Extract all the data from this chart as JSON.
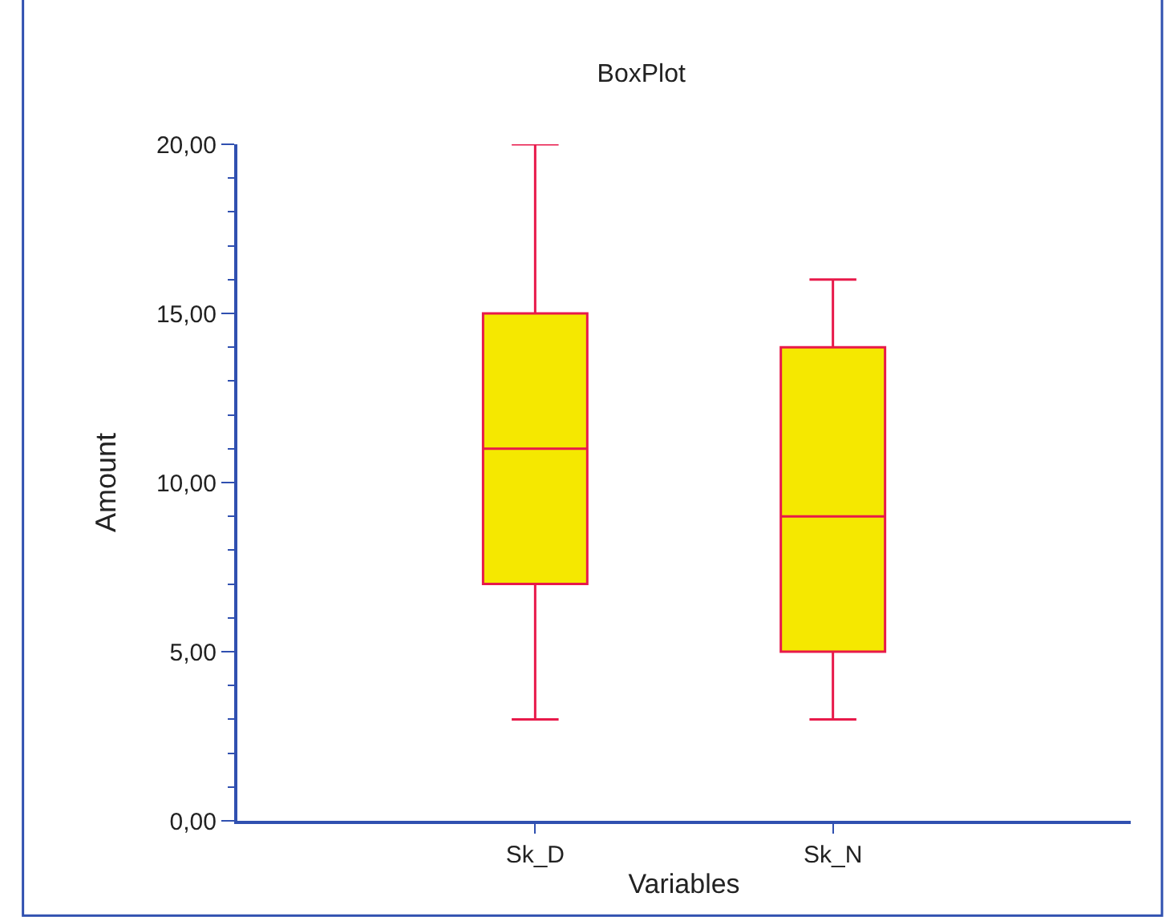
{
  "chart_data": {
    "type": "box",
    "title": "BoxPlot",
    "xlabel": "Variables",
    "ylabel": "Amount",
    "categories": [
      "Sk_D",
      "Sk_N"
    ],
    "boxes": [
      {
        "low": 3,
        "q1": 7,
        "median": 11,
        "q3": 15,
        "high": 20
      },
      {
        "low": 3,
        "q1": 5,
        "median": 9,
        "q3": 14,
        "high": 16
      }
    ],
    "color": "#f5e800",
    "ylim": [
      0,
      20
    ],
    "yticks": [
      {
        "value": 0,
        "label": "0,00"
      },
      {
        "value": 1,
        "label": null
      },
      {
        "value": 2,
        "label": null
      },
      {
        "value": 3,
        "label": null
      },
      {
        "value": 4,
        "label": null
      },
      {
        "value": 5,
        "label": "5,00"
      },
      {
        "value": 6,
        "label": null
      },
      {
        "value": 7,
        "label": null
      },
      {
        "value": 8,
        "label": null
      },
      {
        "value": 9,
        "label": null
      },
      {
        "value": 10,
        "label": "10,00"
      },
      {
        "value": 11,
        "label": null
      },
      {
        "value": 12,
        "label": null
      },
      {
        "value": 13,
        "label": null
      },
      {
        "value": 14,
        "label": null
      },
      {
        "value": 15,
        "label": "15,00"
      },
      {
        "value": 16,
        "label": null
      },
      {
        "value": 17,
        "label": null
      },
      {
        "value": 18,
        "label": null
      },
      {
        "value": 19,
        "label": null
      },
      {
        "value": 20,
        "label": "20,00"
      }
    ]
  }
}
